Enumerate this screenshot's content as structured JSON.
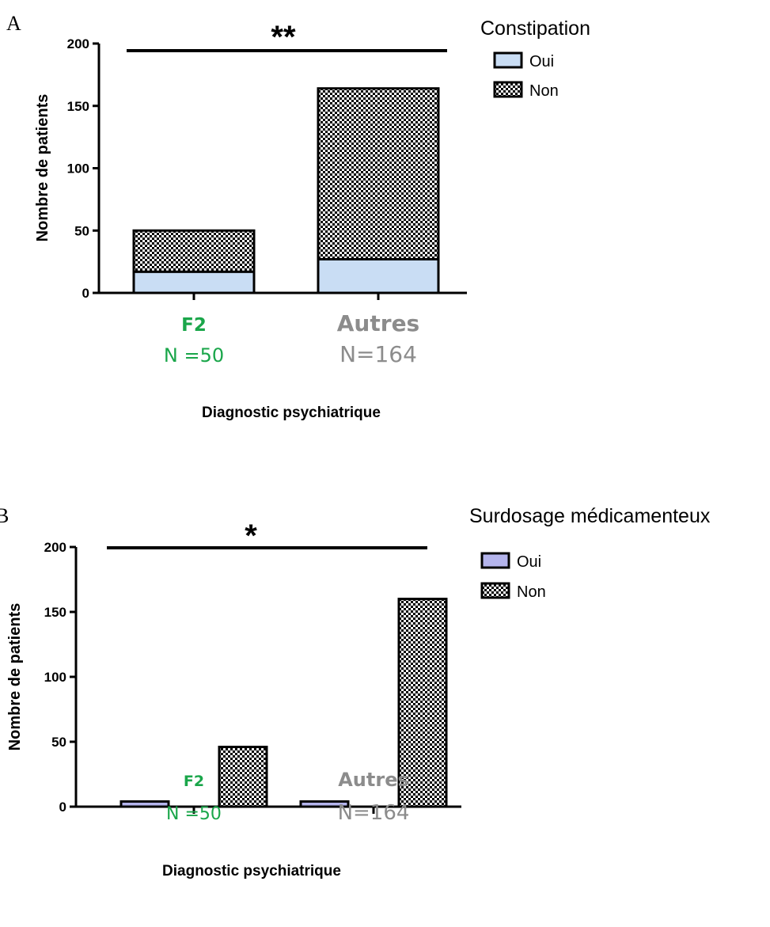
{
  "chart_data": [
    {
      "panel": "A",
      "type": "bar",
      "stacked": true,
      "categories": [
        "F2",
        "Autres"
      ],
      "category_sublabels": [
        "N =50",
        "N=164"
      ],
      "category_colors": [
        "#1aa64a",
        "#8c8c8c"
      ],
      "series": [
        {
          "name": "Oui",
          "values": [
            17,
            27
          ],
          "color": "#c9ddf4",
          "pattern": "solid"
        },
        {
          "name": "Non",
          "values": [
            33,
            137
          ],
          "color": "#000000",
          "pattern": "checker"
        }
      ],
      "xlabel": "Diagnostic psychiatrique",
      "ylabel": "Nombre de patients",
      "ylim": [
        0,
        200
      ],
      "yticks": [
        "0",
        "50",
        "100",
        "150",
        "200"
      ],
      "legend_title": "Constipation",
      "legend_placement": "top-right",
      "significance": "**"
    },
    {
      "panel": "B",
      "type": "bar",
      "stacked": false,
      "categories": [
        "F2",
        "Autres"
      ],
      "category_sublabels": [
        "N =50",
        "N=164"
      ],
      "category_colors": [
        "#1aa64a",
        "#8c8c8c"
      ],
      "series": [
        {
          "name": "Oui",
          "values": [
            4,
            4
          ],
          "color": "#b4b4ec",
          "pattern": "solid"
        },
        {
          "name": "Non",
          "values": [
            46,
            160
          ],
          "color": "#000000",
          "pattern": "checker"
        }
      ],
      "xlabel": "Diagnostic psychiatrique",
      "ylabel": "Nombre de patients",
      "ylim": [
        0,
        200
      ],
      "yticks": [
        "0",
        "50",
        "100",
        "150",
        "200"
      ],
      "legend_title": "Surdosage médicamenteux",
      "legend_placement": "top-right",
      "significance": "*"
    }
  ]
}
